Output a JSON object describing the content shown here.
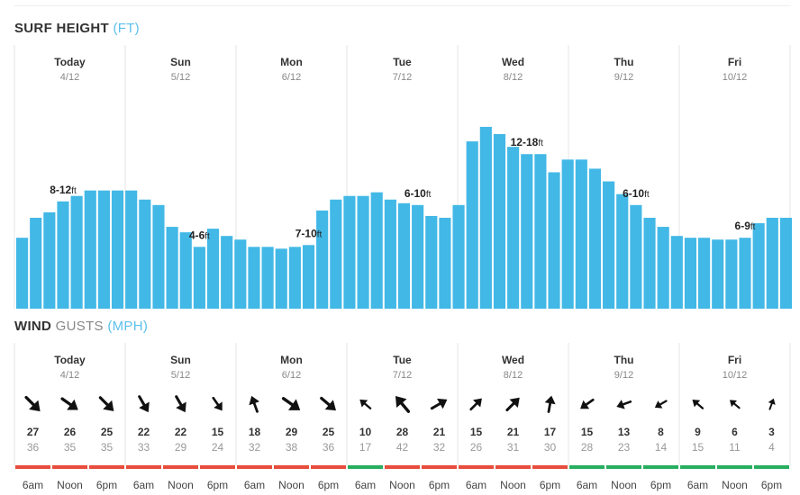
{
  "surf": {
    "title": "SURF HEIGHT",
    "unit": "(FT)",
    "days": [
      {
        "name": "Today",
        "date": "4/12",
        "label": "8-12",
        "label_unit": "ft"
      },
      {
        "name": "Sun",
        "date": "5/12",
        "label": "4-6",
        "label_unit": "ft"
      },
      {
        "name": "Mon",
        "date": "6/12",
        "label": "7-10",
        "label_unit": "ft"
      },
      {
        "name": "Tue",
        "date": "7/12",
        "label": "6-10",
        "label_unit": "ft"
      },
      {
        "name": "Wed",
        "date": "8/12",
        "label": "12-18",
        "label_unit": "ft"
      },
      {
        "name": "Thu",
        "date": "9/12",
        "label": "6-10",
        "label_unit": "ft"
      },
      {
        "name": "Fri",
        "date": "10/12",
        "label": "6-9",
        "label_unit": "ft"
      }
    ],
    "label_bar_index": [
      3,
      13,
      21,
      29,
      37,
      45,
      53
    ],
    "bar_color": "#42b8e6",
    "bars": [
      3.9,
      5.0,
      5.3,
      5.9,
      6.2,
      6.5,
      6.5,
      6.5,
      6.5,
      6.0,
      5.7,
      4.5,
      4.2,
      3.4,
      4.4,
      4.0,
      3.8,
      3.4,
      3.4,
      3.3,
      3.4,
      3.5,
      5.4,
      6.0,
      6.2,
      6.2,
      6.4,
      6.0,
      5.8,
      5.7,
      5.1,
      5.0,
      5.7,
      9.2,
      10.0,
      9.6,
      8.9,
      8.5,
      8.5,
      7.5,
      8.2,
      8.2,
      7.7,
      7.0,
      6.3,
      5.7,
      5.0,
      4.5,
      4.0,
      3.9,
      3.9,
      3.8,
      3.8,
      3.9,
      4.7,
      5.0,
      5.0
    ]
  },
  "wind": {
    "title": "WIND",
    "subtitle": "GUSTS",
    "unit": "(MPH)",
    "days": [
      {
        "name": "Today",
        "date": "4/12"
      },
      {
        "name": "Sun",
        "date": "5/12"
      },
      {
        "name": "Mon",
        "date": "6/12"
      },
      {
        "name": "Tue",
        "date": "7/12"
      },
      {
        "name": "Wed",
        "date": "8/12"
      },
      {
        "name": "Thu",
        "date": "9/12"
      },
      {
        "name": "Fri",
        "date": "10/12"
      }
    ],
    "slots": [
      {
        "time": "6am",
        "speed": "27",
        "gust": "36",
        "dir": 135,
        "status": "#e74c3c"
      },
      {
        "time": "Noon",
        "speed": "26",
        "gust": "35",
        "dir": 125,
        "status": "#e74c3c"
      },
      {
        "time": "6pm",
        "speed": "25",
        "gust": "35",
        "dir": 135,
        "status": "#e74c3c"
      },
      {
        "time": "6am",
        "speed": "22",
        "gust": "33",
        "dir": 150,
        "status": "#e74c3c"
      },
      {
        "time": "Noon",
        "speed": "22",
        "gust": "29",
        "dir": 150,
        "status": "#e74c3c"
      },
      {
        "time": "6pm",
        "speed": "15",
        "gust": "24",
        "dir": 145,
        "status": "#e74c3c"
      },
      {
        "time": "6am",
        "speed": "18",
        "gust": "32",
        "dir": -20,
        "status": "#e74c3c"
      },
      {
        "time": "Noon",
        "speed": "29",
        "gust": "38",
        "dir": 125,
        "status": "#e74c3c"
      },
      {
        "time": "6pm",
        "speed": "25",
        "gust": "36",
        "dir": 130,
        "status": "#e74c3c"
      },
      {
        "time": "6am",
        "speed": "10",
        "gust": "17",
        "dir": -50,
        "status": "#27ae60"
      },
      {
        "time": "Noon",
        "speed": "28",
        "gust": "42",
        "dir": -40,
        "status": "#e74c3c"
      },
      {
        "time": "6pm",
        "speed": "21",
        "gust": "32",
        "dir": 60,
        "status": "#e74c3c"
      },
      {
        "time": "6am",
        "speed": "15",
        "gust": "26",
        "dir": 45,
        "status": "#e74c3c"
      },
      {
        "time": "Noon",
        "speed": "21",
        "gust": "31",
        "dir": 45,
        "status": "#e74c3c"
      },
      {
        "time": "6pm",
        "speed": "17",
        "gust": "30",
        "dir": 10,
        "status": "#e74c3c"
      },
      {
        "time": "6am",
        "speed": "15",
        "gust": "28",
        "dir": -125,
        "status": "#27ae60"
      },
      {
        "time": "Noon",
        "speed": "13",
        "gust": "23",
        "dir": -110,
        "status": "#27ae60"
      },
      {
        "time": "6pm",
        "speed": "8",
        "gust": "14",
        "dir": -120,
        "status": "#27ae60"
      },
      {
        "time": "6am",
        "speed": "9",
        "gust": "15",
        "dir": -50,
        "status": "#27ae60"
      },
      {
        "time": "Noon",
        "speed": "6",
        "gust": "11",
        "dir": -50,
        "status": "#27ae60"
      },
      {
        "time": "6pm",
        "speed": "3",
        "gust": "4",
        "dir": 20,
        "status": "#27ae60"
      }
    ]
  }
}
